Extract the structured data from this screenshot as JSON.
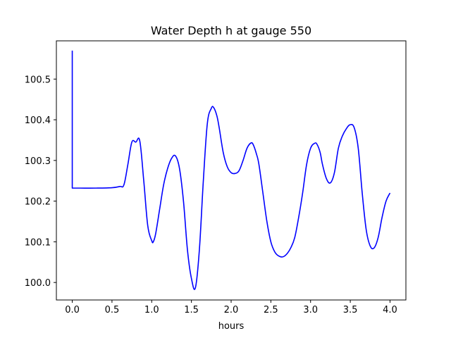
{
  "chart_data": {
    "type": "line",
    "title": "Water Depth h at gauge 550",
    "xlabel": "hours",
    "ylabel": "",
    "xlim": [
      -0.2,
      4.2
    ],
    "ylim": [
      99.957,
      100.594
    ],
    "xticks": [
      0.0,
      0.5,
      1.0,
      1.5,
      2.0,
      2.5,
      3.0,
      3.5,
      4.0
    ],
    "xtick_labels": [
      "0.0",
      "0.5",
      "1.0",
      "1.5",
      "2.0",
      "2.5",
      "3.0",
      "3.5",
      "4.0"
    ],
    "yticks": [
      100.0,
      100.1,
      100.2,
      100.3,
      100.4,
      100.5
    ],
    "ytick_labels": [
      "100.0",
      "100.1",
      "100.2",
      "100.3",
      "100.4",
      "100.5"
    ],
    "grid": false,
    "series": [
      {
        "color": "#0000ff",
        "x": [
          0.0,
          0.0,
          0.0,
          0.1,
          0.3,
          0.5,
          0.6,
          0.65,
          0.7,
          0.75,
          0.8,
          0.85,
          0.9,
          0.95,
          1.0,
          1.02,
          1.05,
          1.1,
          1.15,
          1.2,
          1.25,
          1.3,
          1.35,
          1.4,
          1.45,
          1.5,
          1.55,
          1.6,
          1.65,
          1.7,
          1.75,
          1.78,
          1.82,
          1.85,
          1.9,
          1.95,
          2.0,
          2.05,
          2.1,
          2.15,
          2.2,
          2.25,
          2.28,
          2.32,
          2.35,
          2.4,
          2.45,
          2.5,
          2.55,
          2.6,
          2.65,
          2.7,
          2.75,
          2.8,
          2.85,
          2.9,
          2.95,
          3.0,
          3.05,
          3.08,
          3.12,
          3.15,
          3.2,
          3.25,
          3.3,
          3.35,
          3.4,
          3.45,
          3.5,
          3.55,
          3.6,
          3.65,
          3.7,
          3.75,
          3.8,
          3.85,
          3.9,
          3.95,
          4.0
        ],
        "values": [
          100.57,
          100.232,
          100.232,
          100.232,
          100.232,
          100.233,
          100.236,
          100.24,
          100.29,
          100.345,
          100.345,
          100.348,
          100.25,
          100.14,
          100.103,
          100.1,
          100.12,
          100.18,
          100.24,
          100.28,
          100.305,
          100.311,
          100.28,
          100.2,
          100.08,
          100.01,
          99.987,
          100.08,
          100.25,
          100.39,
          100.428,
          100.43,
          100.41,
          100.38,
          100.32,
          100.285,
          100.27,
          100.268,
          100.275,
          100.3,
          100.33,
          100.343,
          100.338,
          100.315,
          100.29,
          100.22,
          100.15,
          100.1,
          100.075,
          100.065,
          100.063,
          100.07,
          100.085,
          100.11,
          100.16,
          100.22,
          100.29,
          100.33,
          100.342,
          100.34,
          100.32,
          100.29,
          100.255,
          100.245,
          100.27,
          100.33,
          100.36,
          100.378,
          100.388,
          100.38,
          100.33,
          100.22,
          100.13,
          100.09,
          100.085,
          100.11,
          100.16,
          100.2,
          100.22
        ]
      }
    ]
  }
}
